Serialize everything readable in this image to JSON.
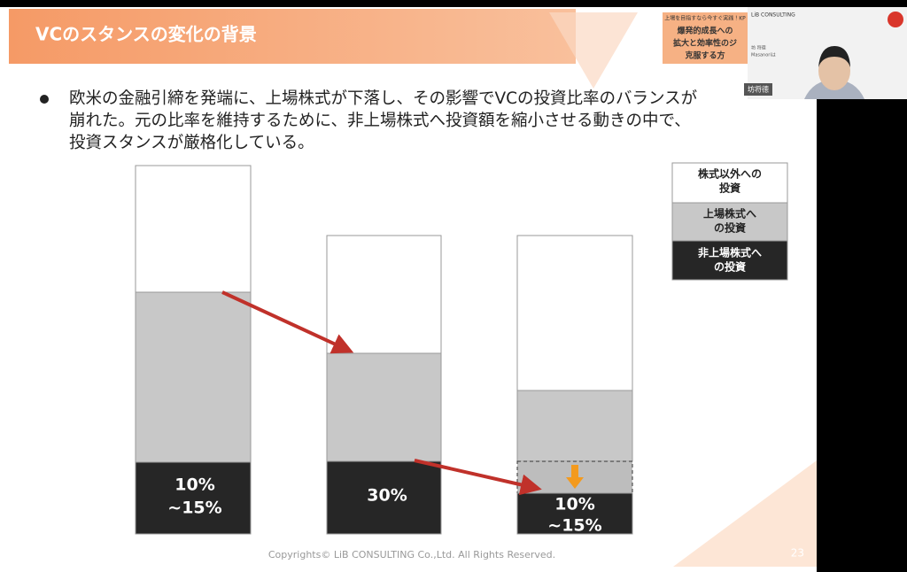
{
  "slide": {
    "title": "VCのスタンスの変化の背景",
    "bullet_lines": [
      "欧米の金融引締を発端に、上場株式が下落し、その影響でVCの投資比率のバランスが",
      "崩れた。元の比率を維持するために、非上場株式へ投資額を縮小させる動きの中で、",
      "投資スタンスが厳格化している。"
    ],
    "bar_labels": [
      [
        "10%",
        "~15%"
      ],
      [
        "30%"
      ],
      [
        "10%",
        "~15%"
      ]
    ],
    "legend": [
      [
        "株式以外への",
        "投資"
      ],
      [
        "上場株式へ",
        "の投資"
      ],
      [
        "非上場株式へ",
        "の投資"
      ]
    ],
    "footer": "Copyrights© LiB CONSULTING Co.,Ltd.  All Rights Reserved.",
    "page_number": "23"
  },
  "overlay": {
    "book_lines": [
      "上場を目指すなら今すぐ実践！KP",
      "爆発的成長への",
      "拡大と効率性のジ",
      "克服する方"
    ],
    "brand": "LiB CONSULTING",
    "speaker": "坊 将德",
    "speaker_romaji": "Masanoriは",
    "name_tag": "坊将德"
  }
}
